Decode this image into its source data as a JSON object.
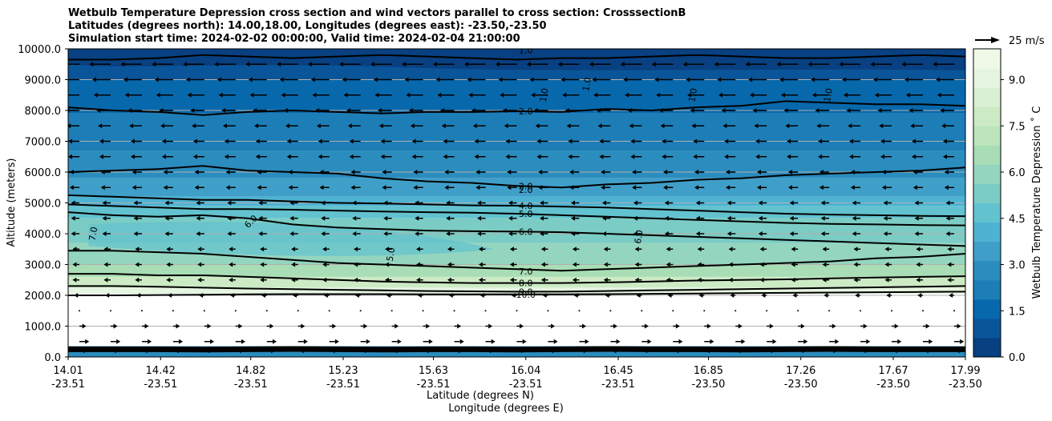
{
  "chart_data": {
    "type": "contour",
    "title": [
      "Wetbulb Temperature Depression cross section and wind vectors parallel to cross section: CrosssectionB",
      "Latitudes (degrees north): 14.00,18.00, Longitudes (degrees east): -23.50,-23.50",
      "Simulation start time: 2024-02-02 00:00:00, Valid time: 2024-02-04 21:00:00"
    ],
    "ylabel": "Altitude (meters)",
    "xlabel": "Latitude (degrees N)",
    "xlabel2": "Longitude (degrees E)",
    "ylim": [
      0,
      10000
    ],
    "yticks": [
      "0.0",
      "1000.0",
      "2000.0",
      "3000.0",
      "4000.0",
      "5000.0",
      "6000.0",
      "7000.0",
      "8000.0",
      "9000.0",
      "10000.0"
    ],
    "xlim": [
      14.01,
      17.99
    ],
    "xticks": [
      {
        "lat": "14.01",
        "lon": "-23.51"
      },
      {
        "lat": "14.42",
        "lon": "-23.51"
      },
      {
        "lat": "14.82",
        "lon": "-23.51"
      },
      {
        "lat": "15.23",
        "lon": "-23.51"
      },
      {
        "lat": "15.63",
        "lon": "-23.51"
      },
      {
        "lat": "16.04",
        "lon": "-23.51"
      },
      {
        "lat": "16.45",
        "lon": "-23.51"
      },
      {
        "lat": "16.85",
        "lon": "-23.50"
      },
      {
        "lat": "17.26",
        "lon": "-23.50"
      },
      {
        "lat": "17.67",
        "lon": "-23.50"
      },
      {
        "lat": "17.99",
        "lon": "-23.50"
      }
    ],
    "grid": "horizontal",
    "colorbar": {
      "label": "Wetbulb Temperature Depression ˚ C",
      "range": [
        0,
        10
      ],
      "ticks": [
        "0.0",
        "1.5",
        "3.0",
        "4.5",
        "6.0",
        "7.5",
        "9.0"
      ],
      "colors": [
        "#084081",
        "#0a5599",
        "#0868ac",
        "#1d7eb7",
        "#2b8cbe",
        "#3f9fc9",
        "#4eb3d3",
        "#62c2cf",
        "#7bccc4",
        "#94d5c0",
        "#a8ddb5",
        "#bce5bb",
        "#ccebc5",
        "#daf0d4",
        "#e6f5e1",
        "#f0f9e8"
      ]
    },
    "quiver_key": "25 m/s",
    "contour_labels": [
      {
        "text": "1.0",
        "lat": 16.04,
        "alt": 9960
      },
      {
        "text": "2.0",
        "lat": 16.04,
        "alt": 7980
      },
      {
        "text": "2.0",
        "lat": 16.04,
        "alt": 5540
      },
      {
        "text": "2.0",
        "lat": 16.04,
        "alt": 5430
      },
      {
        "text": "4.0",
        "lat": 16.04,
        "alt": 4910
      },
      {
        "text": "5.0",
        "lat": 16.04,
        "alt": 4650
      },
      {
        "text": "6.0",
        "lat": 16.04,
        "alt": 4070
      },
      {
        "text": "7.0",
        "lat": 16.04,
        "alt": 2780
      },
      {
        "text": "8.0",
        "lat": 16.04,
        "alt": 2400
      },
      {
        "text": "9.0",
        "lat": 16.04,
        "alt": 2120
      },
      {
        "text": "10.0",
        "lat": 16.04,
        "alt": 2030
      },
      {
        "text": "6.0",
        "lat": 14.82,
        "alt": 4400
      },
      {
        "text": "7.0",
        "lat": 14.12,
        "alt": 4000
      },
      {
        "text": "5.0",
        "lat": 15.44,
        "alt": 3330
      },
      {
        "text": "6.0",
        "lat": 16.54,
        "alt": 3900
      },
      {
        "text": "1.0",
        "lat": 16.31,
        "alt": 8850
      },
      {
        "text": "1.0",
        "lat": 16.12,
        "alt": 8500
      },
      {
        "text": "1.0",
        "lat": 16.78,
        "alt": 8500
      },
      {
        "text": "1.0",
        "lat": 17.38,
        "alt": 8500
      }
    ],
    "wind_rows": [
      {
        "alt": 9500,
        "u": -12
      },
      {
        "alt": 9000,
        "u": -10
      },
      {
        "alt": 8500,
        "u": -9
      },
      {
        "alt": 8000,
        "u": -7
      },
      {
        "alt": 7500,
        "u": -6
      },
      {
        "alt": 7000,
        "u": -5
      },
      {
        "alt": 6500,
        "u": -5
      },
      {
        "alt": 6000,
        "u": -4
      },
      {
        "alt": 5500,
        "u": -4
      },
      {
        "alt": 5000,
        "u": -3
      },
      {
        "alt": 4500,
        "u": -3
      },
      {
        "alt": 4000,
        "u": -3
      },
      {
        "alt": 3500,
        "u": -2
      },
      {
        "alt": 3000,
        "u": -2
      },
      {
        "alt": 2500,
        "u": -2
      },
      {
        "alt": 2000,
        "u": -1
      },
      {
        "alt": 1500,
        "u": 0
      },
      {
        "alt": 1000,
        "u": 2
      },
      {
        "alt": 500,
        "u": 4
      },
      {
        "alt": 200,
        "u": 3
      }
    ]
  }
}
